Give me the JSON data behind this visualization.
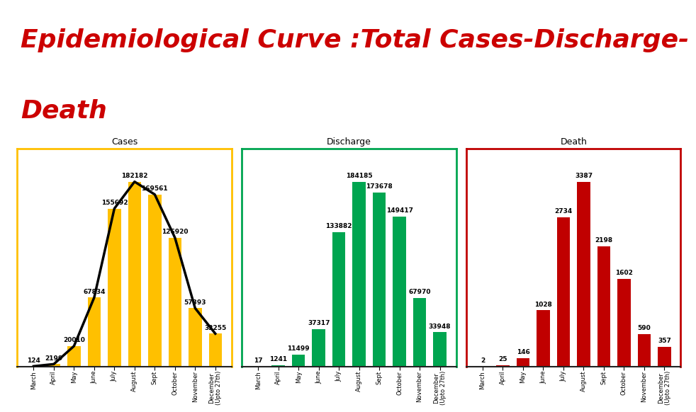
{
  "title_line1": "Epidemiological Curve :Total Cases-Discharge-",
  "title_line2": "Death",
  "title_color": "#cc0000",
  "title_fontsize": 26,
  "background_color": "#ffffff",
  "header_bar_color": "#7030a0",
  "footer_bar_color": "#7030a0",
  "months": [
    "March",
    "April",
    "May",
    "June",
    "July",
    "August",
    "Sept",
    "October",
    "November",
    "December\n(Upto 27th)"
  ],
  "cases_values": [
    124,
    2199,
    20010,
    67834,
    155692,
    182182,
    169561,
    126920,
    57393,
    32255
  ],
  "cases_bar_color": "#ffc000",
  "cases_line_color": "#000000",
  "cases_title": "Cases",
  "cases_border_color": "#ffc000",
  "discharge_values": [
    17,
    1241,
    11499,
    37317,
    133882,
    184185,
    173678,
    149417,
    67970,
    33948
  ],
  "discharge_bar_color": "#00a550",
  "discharge_title": "Discharge",
  "discharge_border_color": "#00a550",
  "death_values": [
    2,
    25,
    146,
    1028,
    2734,
    3387,
    2198,
    1602,
    590,
    357
  ],
  "death_bar_color": "#c00000",
  "death_title": "Death",
  "death_border_color": "#c00000",
  "label_fontsize": 6.5,
  "bar_width": 0.65
}
